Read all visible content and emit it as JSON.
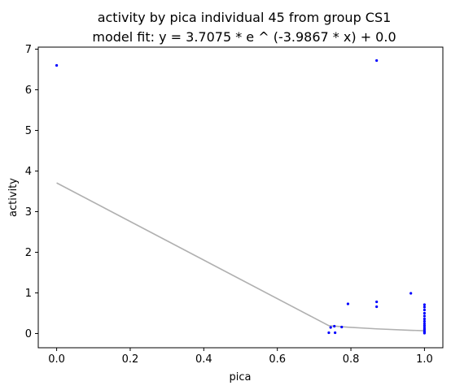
{
  "chart_data": {
    "type": "scatter",
    "title": "activity by pica individual 45 from group CS1",
    "subtitle": "model fit: y = 3.7075 * e ^ (-3.9867 * x) + 0.0",
    "xlabel": "pica",
    "ylabel": "activity",
    "xlim": [
      -0.05,
      1.05
    ],
    "ylim": [
      -0.35,
      7.05
    ],
    "x_ticks": [
      "0.0",
      "0.2",
      "0.4",
      "0.6",
      "0.8",
      "1.0"
    ],
    "y_ticks": [
      "0",
      "1",
      "2",
      "3",
      "4",
      "5",
      "6",
      "7"
    ],
    "grid": false,
    "series": [
      {
        "kind": "scatter",
        "color": "#0000ff",
        "points": [
          [
            0.0,
            6.6
          ],
          [
            0.87,
            6.72
          ],
          [
            0.74,
            0.02
          ],
          [
            0.745,
            0.15
          ],
          [
            0.755,
            0.18
          ],
          [
            0.757,
            0.02
          ],
          [
            0.775,
            0.16
          ],
          [
            0.792,
            0.73
          ],
          [
            0.87,
            0.78
          ],
          [
            0.87,
            0.66
          ],
          [
            0.963,
            0.99
          ],
          [
            1.0,
            0.71
          ],
          [
            1.0,
            0.65
          ],
          [
            1.0,
            0.58
          ],
          [
            1.0,
            0.5
          ],
          [
            1.0,
            0.43
          ],
          [
            1.0,
            0.36
          ],
          [
            1.0,
            0.3
          ],
          [
            1.0,
            0.24
          ],
          [
            1.0,
            0.19
          ],
          [
            1.0,
            0.14
          ],
          [
            1.0,
            0.1
          ],
          [
            1.0,
            0.06
          ],
          [
            1.0,
            0.03
          ],
          [
            1.0,
            0.01
          ]
        ]
      },
      {
        "kind": "line",
        "color": "#b0b0b0",
        "points": [
          [
            0.0,
            3.7075
          ],
          [
            0.74,
            0.1932
          ],
          [
            0.745,
            0.1894
          ],
          [
            0.755,
            0.1819
          ],
          [
            0.757,
            0.1804
          ],
          [
            0.775,
            0.168
          ],
          [
            0.792,
            0.1571
          ],
          [
            0.87,
            0.1149
          ],
          [
            0.963,
            0.0794
          ],
          [
            1.0,
            0.0686
          ]
        ]
      }
    ]
  }
}
